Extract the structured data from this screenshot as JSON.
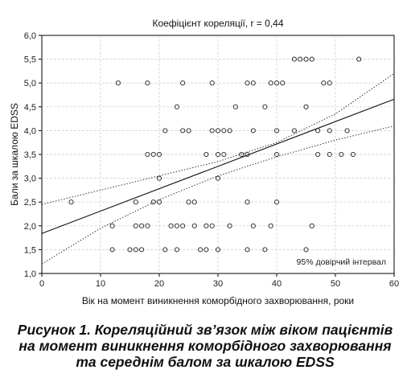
{
  "chart_data": {
    "type": "scatter",
    "title": "Коефіцієнт кореляції, r = 0,44",
    "xlabel": "Вік на момент виникнення коморбідного захворювання, роки",
    "ylabel": "Бали за шкалою EDSS",
    "xlim": [
      0,
      60
    ],
    "ylim": [
      1.0,
      6.0
    ],
    "x_ticks": [
      "0",
      "10",
      "20",
      "30",
      "40",
      "50",
      "60"
    ],
    "y_ticks": [
      "1,0",
      "1,5",
      "2,0",
      "2,5",
      "3,0",
      "3,5",
      "4,0",
      "4,5",
      "5,0",
      "5,5",
      "6,0"
    ],
    "grid": true,
    "regression_line": {
      "x": [
        0,
        60
      ],
      "y": [
        1.84,
        4.66
      ]
    },
    "ci_lower": {
      "x": [
        0,
        10,
        20,
        30,
        40,
        50,
        60
      ],
      "y": [
        1.2,
        1.95,
        2.55,
        3.05,
        3.45,
        3.8,
        4.1
      ]
    },
    "ci_upper": {
      "x": [
        0,
        10,
        20,
        30,
        40,
        50,
        60
      ],
      "y": [
        2.45,
        2.75,
        3.05,
        3.35,
        3.75,
        4.35,
        5.2
      ]
    },
    "annotation": "95% довірчий інтервал",
    "points": [
      {
        "x": 5,
        "y": 2.5
      },
      {
        "x": 12,
        "y": 2.0
      },
      {
        "x": 12,
        "y": 1.5
      },
      {
        "x": 13,
        "y": 5.0
      },
      {
        "x": 15,
        "y": 1.5
      },
      {
        "x": 16,
        "y": 1.5
      },
      {
        "x": 16,
        "y": 2.5
      },
      {
        "x": 16,
        "y": 2.0
      },
      {
        "x": 17,
        "y": 1.5
      },
      {
        "x": 17,
        "y": 2.0
      },
      {
        "x": 18,
        "y": 5.0
      },
      {
        "x": 18,
        "y": 3.5
      },
      {
        "x": 18,
        "y": 2.0
      },
      {
        "x": 19,
        "y": 3.5
      },
      {
        "x": 19,
        "y": 2.5
      },
      {
        "x": 20,
        "y": 3.5
      },
      {
        "x": 20,
        "y": 3.0
      },
      {
        "x": 20,
        "y": 2.5
      },
      {
        "x": 21,
        "y": 4.0
      },
      {
        "x": 21,
        "y": 1.5
      },
      {
        "x": 22,
        "y": 2.0
      },
      {
        "x": 23,
        "y": 4.5
      },
      {
        "x": 23,
        "y": 2.0
      },
      {
        "x": 23,
        "y": 1.5
      },
      {
        "x": 24,
        "y": 5.0
      },
      {
        "x": 24,
        "y": 4.0
      },
      {
        "x": 24,
        "y": 2.0
      },
      {
        "x": 25,
        "y": 4.0
      },
      {
        "x": 25,
        "y": 2.5
      },
      {
        "x": 26,
        "y": 2.5
      },
      {
        "x": 26,
        "y": 2.0
      },
      {
        "x": 27,
        "y": 1.5
      },
      {
        "x": 28,
        "y": 3.5
      },
      {
        "x": 28,
        "y": 2.0
      },
      {
        "x": 28,
        "y": 1.5
      },
      {
        "x": 29,
        "y": 5.0
      },
      {
        "x": 29,
        "y": 4.0
      },
      {
        "x": 29,
        "y": 2.0
      },
      {
        "x": 30,
        "y": 4.0
      },
      {
        "x": 30,
        "y": 3.5
      },
      {
        "x": 30,
        "y": 3.0
      },
      {
        "x": 30,
        "y": 1.5
      },
      {
        "x": 31,
        "y": 4.0
      },
      {
        "x": 31,
        "y": 3.5
      },
      {
        "x": 32,
        "y": 4.0
      },
      {
        "x": 32,
        "y": 2.0
      },
      {
        "x": 33,
        "y": 4.5
      },
      {
        "x": 34,
        "y": 3.5
      },
      {
        "x": 35,
        "y": 5.0
      },
      {
        "x": 35,
        "y": 3.5
      },
      {
        "x": 35,
        "y": 2.5
      },
      {
        "x": 35,
        "y": 1.5
      },
      {
        "x": 36,
        "y": 5.0
      },
      {
        "x": 36,
        "y": 4.0
      },
      {
        "x": 36,
        "y": 2.0
      },
      {
        "x": 38,
        "y": 4.5
      },
      {
        "x": 38,
        "y": 1.5
      },
      {
        "x": 39,
        "y": 5.0
      },
      {
        "x": 39,
        "y": 2.0
      },
      {
        "x": 40,
        "y": 5.0
      },
      {
        "x": 40,
        "y": 4.0
      },
      {
        "x": 40,
        "y": 3.5
      },
      {
        "x": 40,
        "y": 2.5
      },
      {
        "x": 41,
        "y": 5.0
      },
      {
        "x": 43,
        "y": 5.5
      },
      {
        "x": 43,
        "y": 4.0
      },
      {
        "x": 44,
        "y": 5.5
      },
      {
        "x": 45,
        "y": 5.5
      },
      {
        "x": 45,
        "y": 4.5
      },
      {
        "x": 45,
        "y": 1.5
      },
      {
        "x": 46,
        "y": 5.5
      },
      {
        "x": 46,
        "y": 2.0
      },
      {
        "x": 47,
        "y": 4.0
      },
      {
        "x": 47,
        "y": 3.5
      },
      {
        "x": 48,
        "y": 5.0
      },
      {
        "x": 49,
        "y": 5.0
      },
      {
        "x": 49,
        "y": 4.0
      },
      {
        "x": 49,
        "y": 3.5
      },
      {
        "x": 51,
        "y": 3.5
      },
      {
        "x": 52,
        "y": 4.0
      },
      {
        "x": 53,
        "y": 3.5
      },
      {
        "x": 54,
        "y": 5.5
      }
    ]
  },
  "caption": "Рисунок 1. Кореляційний зв’язок між віком пацієнтів на момент виникнення коморбідного захворювання та середнім балом за шкалою EDSS"
}
